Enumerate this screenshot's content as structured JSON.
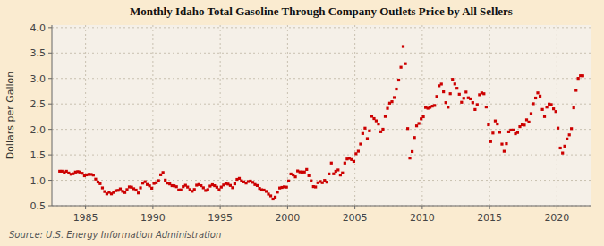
{
  "chart_data": {
    "type": "scatter",
    "title": "Monthly Idaho Total Gasoline Through Company Outlets Price by All Sellers",
    "y_label": "Dollars per Gallon",
    "annotations": [
      "Source: U.S. Energy Information Administration"
    ],
    "color": "#cc0000",
    "marker": "square",
    "grid": true,
    "xlim": [
      1982.5,
      2022.5
    ],
    "ylim": [
      0.5,
      4.05
    ],
    "xticks": [
      1985,
      1990,
      1995,
      2000,
      2005,
      2010,
      2015,
      2020
    ],
    "yticks": [
      0.5,
      {
        "value": 1,
        "label": "1.0"
      },
      1.5,
      {
        "value": 2,
        "label": "2.0"
      },
      2.5,
      {
        "value": 3,
        "label": "3.0"
      },
      3.5,
      {
        "value": 4,
        "label": "4.0"
      }
    ],
    "x": [
      1983.08,
      1983.25,
      1983.42,
      1983.58,
      1983.75,
      1983.92,
      1984.08,
      1984.25,
      1984.42,
      1984.58,
      1984.75,
      1984.92,
      1985.08,
      1985.25,
      1985.42,
      1985.58,
      1985.75,
      1985.92,
      1986.08,
      1986.25,
      1986.42,
      1986.58,
      1986.75,
      1986.92,
      1987.08,
      1987.25,
      1987.42,
      1987.58,
      1987.75,
      1987.92,
      1988.08,
      1988.25,
      1988.42,
      1988.58,
      1988.75,
      1988.92,
      1989.08,
      1989.25,
      1989.42,
      1989.58,
      1989.75,
      1989.92,
      1990.08,
      1990.25,
      1990.42,
      1990.58,
      1990.75,
      1990.92,
      1991.08,
      1991.25,
      1991.42,
      1991.58,
      1991.75,
      1991.92,
      1992.08,
      1992.25,
      1992.42,
      1992.58,
      1992.75,
      1992.92,
      1993.08,
      1993.25,
      1993.42,
      1993.58,
      1993.75,
      1993.92,
      1994.08,
      1994.25,
      1994.42,
      1994.58,
      1994.75,
      1994.92,
      1995.08,
      1995.25,
      1995.42,
      1995.58,
      1995.75,
      1995.92,
      1996.08,
      1996.25,
      1996.42,
      1996.58,
      1996.75,
      1996.92,
      1997.08,
      1997.25,
      1997.42,
      1997.58,
      1997.75,
      1997.92,
      1998.08,
      1998.25,
      1998.42,
      1998.58,
      1998.75,
      1998.92,
      1999.08,
      1999.25,
      1999.42,
      1999.58,
      1999.75,
      1999.92,
      2000.08,
      2000.25,
      2000.42,
      2000.58,
      2000.75,
      2000.92,
      2001.08,
      2001.25,
      2001.42,
      2001.58,
      2001.75,
      2001.92,
      2002.08,
      2002.25,
      2002.42,
      2002.58,
      2002.75,
      2002.92,
      2003.08,
      2003.25,
      2003.42,
      2003.58,
      2003.75,
      2003.92,
      2004.08,
      2004.25,
      2004.42,
      2004.58,
      2004.75,
      2004.92,
      2005.08,
      2005.25,
      2005.42,
      2005.58,
      2005.75,
      2005.92,
      2006.08,
      2006.25,
      2006.42,
      2006.58,
      2006.75,
      2006.92,
      2007.08,
      2007.25,
      2007.42,
      2007.58,
      2007.75,
      2007.92,
      2008.08,
      2008.25,
      2008.42,
      2008.58,
      2008.75,
      2008.92,
      2009.08,
      2009.25,
      2009.42,
      2009.58,
      2009.75,
      2009.92,
      2010.08,
      2010.25,
      2010.42,
      2010.58,
      2010.75,
      2010.92,
      2011.08,
      2011.25,
      2011.42,
      2011.58,
      2011.75,
      2011.92,
      2012.08,
      2012.25,
      2012.42,
      2012.58,
      2012.75,
      2012.92,
      2013.08,
      2013.25,
      2013.42,
      2013.58,
      2013.75,
      2013.92,
      2014.08,
      2014.25,
      2014.42,
      2014.58,
      2014.75,
      2014.92,
      2015.08,
      2015.25,
      2015.42,
      2015.58,
      2015.75,
      2015.92,
      2016.08,
      2016.25,
      2016.42,
      2016.58,
      2016.75,
      2016.92,
      2017.08,
      2017.25,
      2017.42,
      2017.58,
      2017.75,
      2017.92,
      2018.08,
      2018.25,
      2018.42,
      2018.58,
      2018.75,
      2018.92,
      2019.08,
      2019.25,
      2019.42,
      2019.58,
      2019.75,
      2019.92,
      2020.08,
      2020.25,
      2020.42,
      2020.58,
      2020.75,
      2020.92,
      2021.08,
      2021.25,
      2021.42,
      2021.58,
      2021.75,
      2021.92
    ],
    "values": [
      1.179,
      1.179,
      1.152,
      1.178,
      1.143,
      1.119,
      1.129,
      1.162,
      1.171,
      1.163,
      1.138,
      1.089,
      1.107,
      1.118,
      1.116,
      1.103,
      1.023,
      0.966,
      0.934,
      0.851,
      0.779,
      0.733,
      0.764,
      0.733,
      0.762,
      0.797,
      0.803,
      0.832,
      0.784,
      0.76,
      0.818,
      0.87,
      0.865,
      0.835,
      0.808,
      0.751,
      0.852,
      0.944,
      0.972,
      0.917,
      0.891,
      0.845,
      0.939,
      0.952,
      0.993,
      1.109,
      1.153,
      1.003,
      0.945,
      0.928,
      0.895,
      0.892,
      0.874,
      0.81,
      0.812,
      0.875,
      0.902,
      0.867,
      0.818,
      0.784,
      0.82,
      0.904,
      0.916,
      0.894,
      0.853,
      0.8,
      0.817,
      0.886,
      0.913,
      0.894,
      0.864,
      0.817,
      0.867,
      0.908,
      0.936,
      0.925,
      0.899,
      0.855,
      0.93,
      1.018,
      1.038,
      0.989,
      0.968,
      0.945,
      0.975,
      0.984,
      0.96,
      0.917,
      0.897,
      0.841,
      0.815,
      0.808,
      0.782,
      0.729,
      0.694,
      0.632,
      0.669,
      0.767,
      0.849,
      0.86,
      0.871,
      0.866,
      0.987,
      1.125,
      1.106,
      1.068,
      1.184,
      1.165,
      1.162,
      1.163,
      1.214,
      1.092,
      0.989,
      0.876,
      0.869,
      0.952,
      0.975,
      0.953,
      0.998,
      0.963,
      1.126,
      1.339,
      1.128,
      1.177,
      1.204,
      1.104,
      1.146,
      1.339,
      1.419,
      1.432,
      1.408,
      1.371,
      1.522,
      1.571,
      1.712,
      1.918,
      2.024,
      1.818,
      1.971,
      2.258,
      2.213,
      2.168,
      2.106,
      1.953,
      2.003,
      2.255,
      2.413,
      2.516,
      2.545,
      2.627,
      2.793,
      2.969,
      3.221,
      3.628,
      3.291,
      2.016,
      1.437,
      1.564,
      1.84,
      2.069,
      2.117,
      2.208,
      2.249,
      2.431,
      2.415,
      2.434,
      2.457,
      2.471,
      2.648,
      2.857,
      2.891,
      2.739,
      2.527,
      2.436,
      2.702,
      2.984,
      2.893,
      2.808,
      2.691,
      2.534,
      2.613,
      2.734,
      2.622,
      2.601,
      2.527,
      2.391,
      2.487,
      2.681,
      2.717,
      2.701,
      2.44,
      2.091,
      1.761,
      1.927,
      2.167,
      2.107,
      1.943,
      1.711,
      1.57,
      1.719,
      1.952,
      1.986,
      1.987,
      1.914,
      1.938,
      2.054,
      2.091,
      2.085,
      2.189,
      2.145,
      2.31,
      2.505,
      2.618,
      2.718,
      2.655,
      2.392,
      2.253,
      2.438,
      2.498,
      2.488,
      2.404,
      2.351,
      2.025,
      1.634,
      1.535,
      1.671,
      1.812,
      1.892,
      2.015,
      2.424,
      2.767,
      3.002,
      3.054,
      3.053
    ]
  }
}
